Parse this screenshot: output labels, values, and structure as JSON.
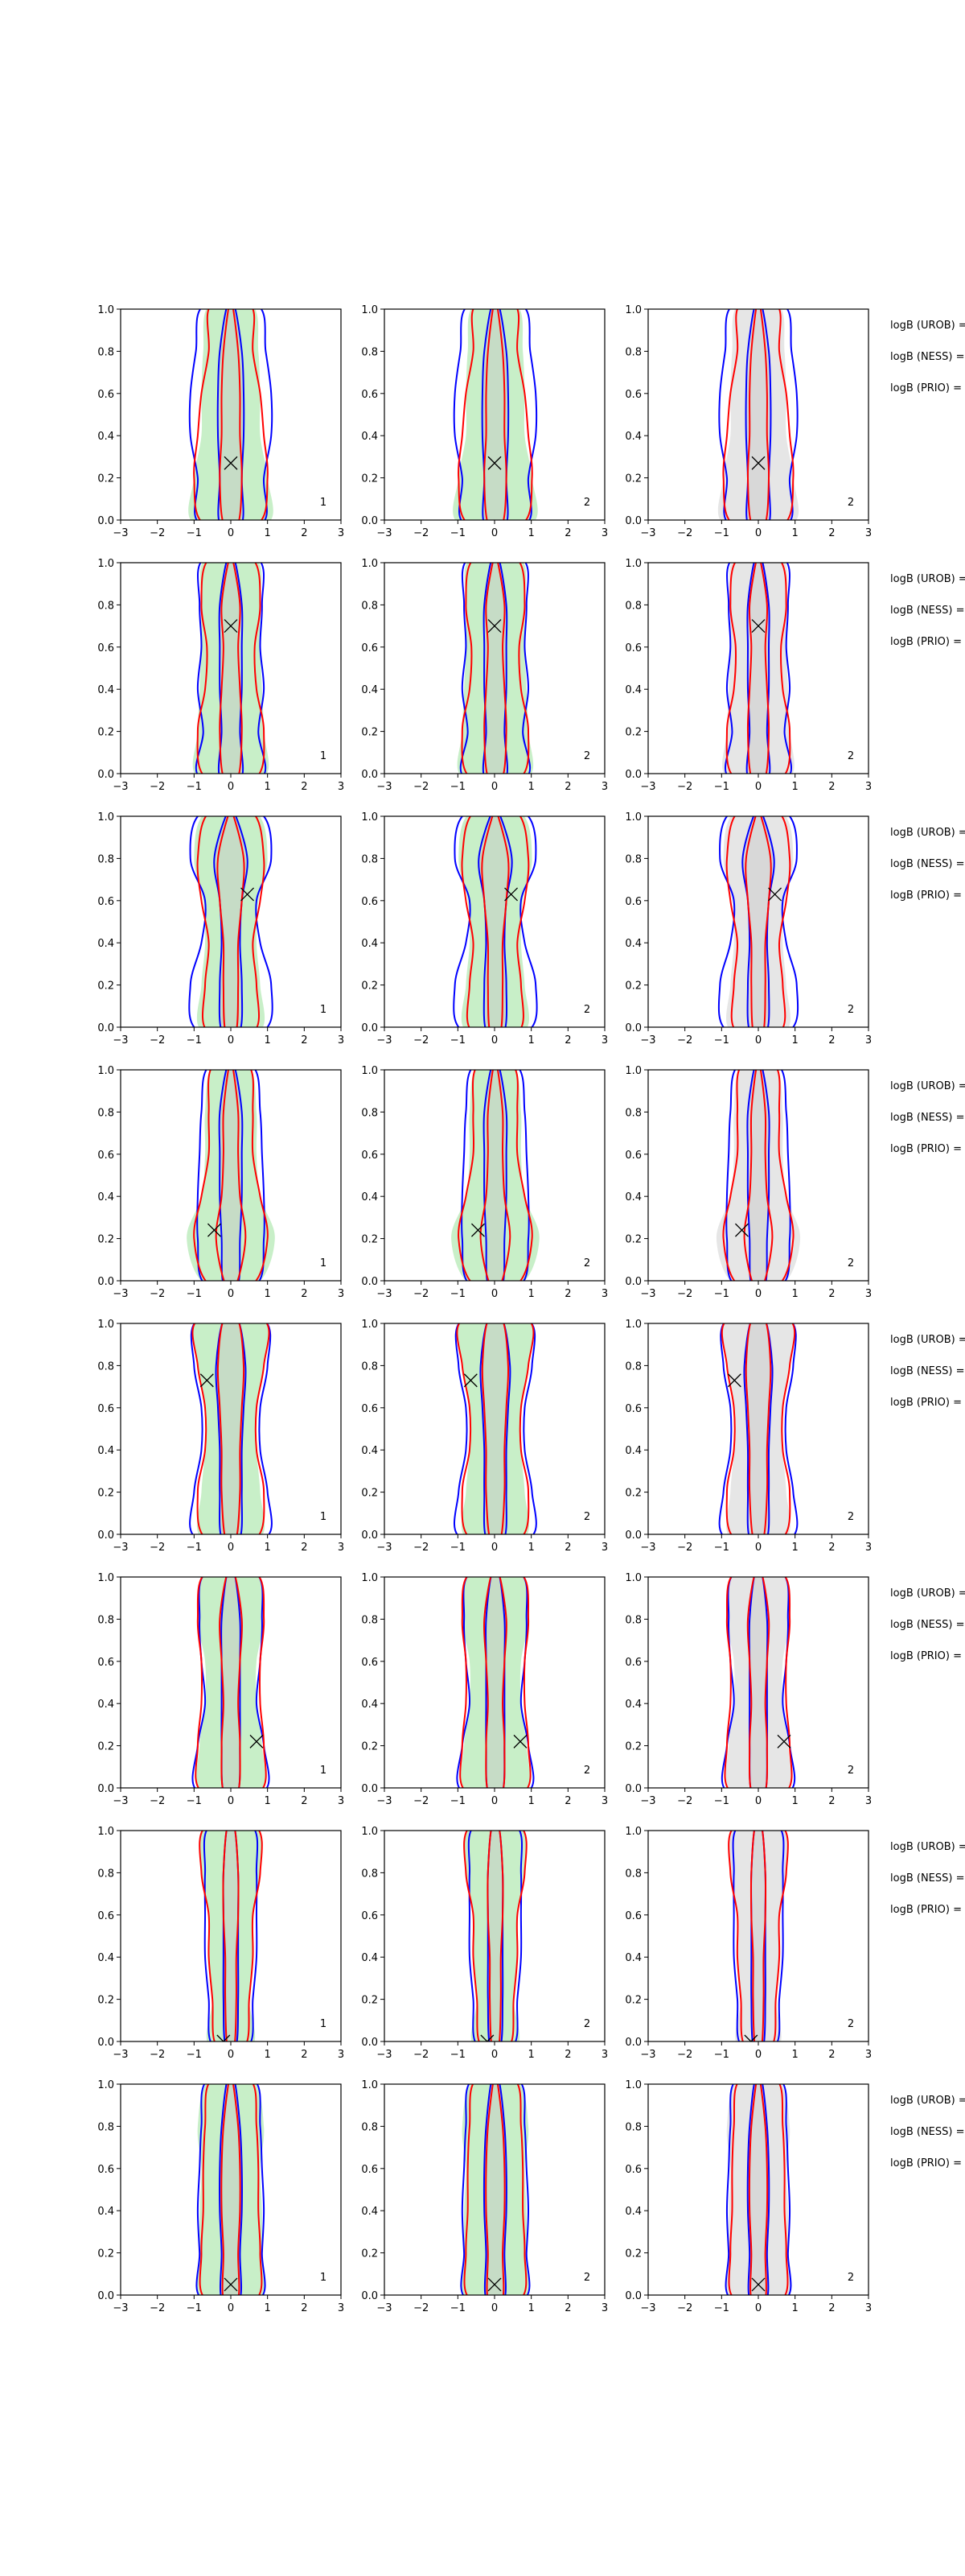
{
  "chart_data": {
    "type": "contour-grid",
    "rows": 8,
    "cols": 3,
    "xlim": [
      -3,
      3
    ],
    "ylim": [
      0,
      1
    ],
    "xticks": [
      -3,
      -2,
      -1,
      0,
      1,
      2,
      3
    ],
    "yticks": [
      0.0,
      0.2,
      0.4,
      0.6,
      0.8,
      1.0
    ],
    "xtick_labels": [
      "−3",
      "−2",
      "−1",
      "0",
      "1",
      "2",
      "3"
    ],
    "ytick_labels": [
      "0.0",
      "0.2",
      "0.4",
      "0.6",
      "0.8",
      "1.0"
    ],
    "corner_labels": [
      "1",
      "2",
      "2"
    ],
    "side_labels": [
      "logB (UROB) =",
      "logB (NESS) =",
      "logB (PRIO) ="
    ],
    "colors": {
      "blue": "#0000ff",
      "red": "#ff0000",
      "green_fill": "#c8efc8",
      "grey_fill": "#e6e6e6",
      "inner_fill": "#c6dcc6"
    },
    "contour_levels_y": [
      0,
      0.2,
      0.4,
      0.6,
      0.8,
      1.0
    ],
    "panels": [
      {
        "marker": [
          0.0,
          0.27
        ],
        "bo": [
          0.85,
          0.9,
          1.1,
          1.1,
          0.95,
          0.75
        ],
        "bi": [
          0.3,
          0.3,
          0.35,
          0.35,
          0.3,
          0.1
        ],
        "ro": [
          0.75,
          1.0,
          0.9,
          0.8,
          0.6,
          0.55
        ],
        "ri": [
          0.2,
          0.3,
          0.25,
          0.25,
          0.2,
          0.05
        ],
        "fo": [
          1.0,
          1.0,
          0.8,
          0.8,
          0.75,
          0.6
        ]
      },
      {
        "marker": [
          0.0,
          0.7
        ],
        "bo": [
          0.85,
          0.75,
          0.9,
          0.8,
          0.85,
          0.75
        ],
        "bi": [
          0.3,
          0.25,
          0.3,
          0.3,
          0.3,
          0.1
        ],
        "ro": [
          0.7,
          0.9,
          0.7,
          0.65,
          0.8,
          0.6
        ],
        "ri": [
          0.2,
          0.3,
          0.25,
          0.2,
          0.25,
          0.05
        ],
        "fo": [
          0.9,
          0.9,
          0.85,
          0.8,
          0.8,
          0.7
        ]
      },
      {
        "marker": [
          0.45,
          0.63
        ],
        "bo": [
          0.9,
          1.1,
          0.8,
          0.7,
          1.1,
          0.8
        ],
        "bi": [
          0.25,
          0.3,
          0.25,
          0.3,
          0.45,
          0.1
        ],
        "ro": [
          0.65,
          0.7,
          0.6,
          0.8,
          0.9,
          0.6
        ],
        "ri": [
          0.15,
          0.2,
          0.2,
          0.3,
          0.35,
          0.05
        ],
        "fo": [
          0.8,
          0.8,
          0.7,
          0.75,
          1.0,
          0.7
        ]
      },
      {
        "marker": [
          -0.45,
          0.24
        ],
        "bo": [
          0.7,
          0.9,
          0.9,
          0.85,
          0.8,
          0.6
        ],
        "bi": [
          0.2,
          0.25,
          0.3,
          0.3,
          0.3,
          0.1
        ],
        "ro": [
          0.6,
          1.0,
          0.8,
          0.6,
          0.6,
          0.5
        ],
        "ri": [
          0.15,
          0.4,
          0.25,
          0.2,
          0.2,
          0.05
        ],
        "fo": [
          0.7,
          1.2,
          0.8,
          0.7,
          0.7,
          0.5
        ]
      },
      {
        "marker": [
          -0.65,
          0.73
        ],
        "bo": [
          0.95,
          1.0,
          0.8,
          0.8,
          1.0,
          0.9
        ],
        "bi": [
          0.25,
          0.3,
          0.3,
          0.35,
          0.4,
          0.2
        ],
        "ro": [
          0.7,
          0.9,
          0.7,
          0.7,
          0.9,
          0.9
        ],
        "ri": [
          0.15,
          0.25,
          0.25,
          0.3,
          0.35,
          0.2
        ],
        "fo": [
          0.8,
          0.8,
          0.7,
          0.7,
          0.9,
          0.9
        ]
      },
      {
        "marker": [
          0.7,
          0.22
        ],
        "bo": [
          0.9,
          0.9,
          0.7,
          0.8,
          0.85,
          0.7
        ],
        "bi": [
          0.2,
          0.25,
          0.25,
          0.25,
          0.25,
          0.1
        ],
        "ro": [
          0.8,
          0.9,
          0.8,
          0.8,
          0.9,
          0.7
        ],
        "ri": [
          0.2,
          0.25,
          0.2,
          0.25,
          0.3,
          0.1
        ],
        "fo": [
          0.8,
          0.85,
          0.7,
          0.7,
          0.9,
          0.7
        ]
      },
      {
        "marker": [
          -0.2,
          0.0
        ],
        "bo": [
          0.5,
          0.6,
          0.7,
          0.7,
          0.7,
          0.6
        ],
        "bi": [
          0.15,
          0.2,
          0.2,
          0.2,
          0.2,
          0.1
        ],
        "ro": [
          0.4,
          0.5,
          0.6,
          0.6,
          0.8,
          0.7
        ],
        "ri": [
          0.1,
          0.15,
          0.15,
          0.2,
          0.2,
          0.1
        ],
        "fo": [
          0.6,
          0.5,
          0.6,
          0.6,
          0.8,
          0.7
        ]
      },
      {
        "marker": [
          0.0,
          0.05
        ],
        "bo": [
          0.8,
          0.85,
          0.9,
          0.85,
          0.8,
          0.65
        ],
        "bi": [
          0.25,
          0.25,
          0.3,
          0.3,
          0.25,
          0.1
        ],
        "ro": [
          0.7,
          0.8,
          0.75,
          0.75,
          0.7,
          0.55
        ],
        "ri": [
          0.2,
          0.2,
          0.25,
          0.25,
          0.2,
          0.05
        ],
        "fo": [
          0.8,
          0.85,
          0.85,
          0.8,
          0.9,
          0.6
        ]
      }
    ]
  }
}
